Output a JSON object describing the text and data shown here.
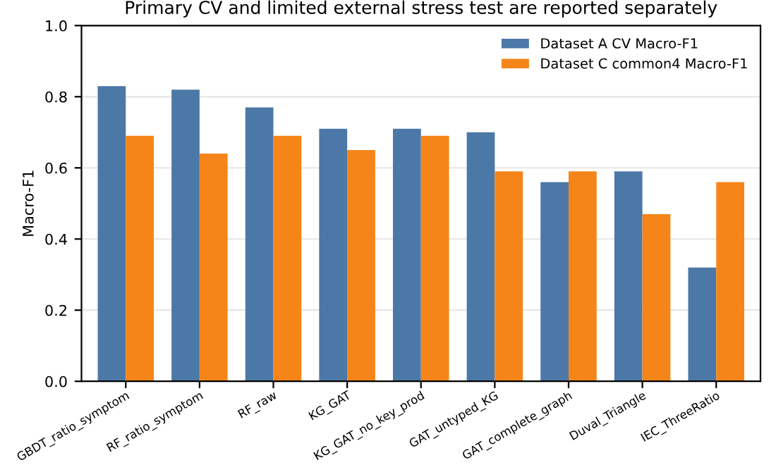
{
  "chart_data": {
    "type": "bar",
    "title": "Primary CV and limited external stress test are reported separately",
    "ylabel": "Macro-F1",
    "categories": [
      "GBDT_ratio_symptom",
      "RF_ratio_symptom",
      "RF_raw",
      "KG_GAT",
      "KG_GAT_no_key_prod",
      "GAT_untyped_KG",
      "GAT_complete_graph",
      "Duval_Triangle",
      "IEC_ThreeRatio"
    ],
    "series": [
      {
        "name": "Dataset A CV Macro-F1",
        "color": "#4c78a8",
        "values": [
          0.83,
          0.82,
          0.77,
          0.71,
          0.71,
          0.7,
          0.56,
          0.59,
          0.32
        ]
      },
      {
        "name": "Dataset C common4 Macro-F1",
        "color": "#f58518",
        "values": [
          0.69,
          0.64,
          0.69,
          0.65,
          0.69,
          0.59,
          0.59,
          0.47,
          0.56
        ]
      }
    ],
    "ylim": [
      0,
      1.0
    ],
    "yticks": [
      {
        "value": 0,
        "label": "0.0"
      },
      {
        "value": 0.2,
        "label": "0.2"
      },
      {
        "value": 0.4,
        "label": "0.4"
      },
      {
        "value": 0.6,
        "label": "0.6"
      },
      {
        "value": 0.8,
        "label": "0.8"
      },
      {
        "value": 1.0,
        "label": "1.0"
      }
    ],
    "grid": "y",
    "legend": "top right"
  }
}
